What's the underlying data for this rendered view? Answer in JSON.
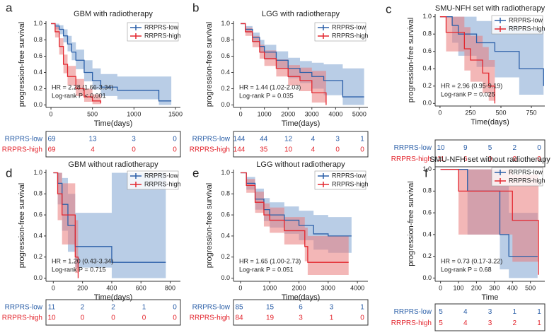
{
  "chart_data": [
    {
      "type": "step",
      "panel": "a",
      "title": "GBM with radiotherapy",
      "x_label": "Time(days)",
      "y_label": "progression-free survival",
      "xlim": [
        -60,
        1560
      ],
      "ylim": [
        -0.03,
        1.03
      ],
      "xticks": [
        0,
        500,
        1000,
        1500
      ],
      "yticks": [
        {
          "value": 0,
          "label": "0.0"
        },
        {
          "value": 0.2,
          "label": "0.2"
        },
        {
          "value": 0.4,
          "label": "0.4"
        },
        {
          "value": 0.6,
          "label": "0.6"
        },
        {
          "value": 0.8,
          "label": "0.8"
        },
        {
          "value": 1,
          "label": "1.0"
        }
      ],
      "legend": "upper right",
      "annotations": [
        "HR = 2.28 (1.66-3.34)",
        "Log-rank P < 0.001"
      ],
      "series": [
        {
          "name": "RRPRS-low",
          "color": "#2b5fa8",
          "x": [
            0,
            50,
            100,
            150,
            200,
            250,
            300,
            400,
            500,
            600,
            800,
            1300,
            1450
          ],
          "values": [
            1,
            0.97,
            0.93,
            0.85,
            0.75,
            0.65,
            0.55,
            0.4,
            0.3,
            0.22,
            0.18,
            0.05,
            0.05
          ],
          "lower": [
            1,
            0.93,
            0.87,
            0.77,
            0.66,
            0.55,
            0.44,
            0.29,
            0.19,
            0.11,
            0.07,
            0,
            0
          ],
          "upper": [
            1,
            1,
            0.98,
            0.93,
            0.85,
            0.77,
            0.68,
            0.55,
            0.45,
            0.38,
            0.35,
            0.35,
            0.35
          ],
          "at_risk": [
            69,
            13,
            3,
            0
          ]
        },
        {
          "name": "RRPRS-high",
          "color": "#e3262e",
          "x": [
            0,
            50,
            100,
            150,
            200,
            300,
            400,
            500,
            600
          ],
          "values": [
            1,
            0.9,
            0.72,
            0.5,
            0.35,
            0.2,
            0.1,
            0.05,
            0.02
          ],
          "lower": [
            1,
            0.83,
            0.62,
            0.39,
            0.24,
            0.11,
            0.04,
            0.01,
            0
          ],
          "upper": [
            1,
            0.96,
            0.82,
            0.62,
            0.48,
            0.32,
            0.2,
            0.13,
            0.1
          ],
          "at_risk": [
            69,
            4,
            0,
            0
          ]
        }
      ]
    },
    {
      "type": "step",
      "panel": "b",
      "title": "LGG with radiotherapy",
      "x_label": "Time(days)",
      "y_label": "progression-free survival",
      "xlim": [
        -300,
        5360
      ],
      "ylim": [
        -0.03,
        1.03
      ],
      "xticks": [
        0,
        1000,
        2000,
        3000,
        4000,
        5000
      ],
      "yticks": [
        {
          "value": 0,
          "label": "0.0"
        },
        {
          "value": 0.2,
          "label": "0.2"
        },
        {
          "value": 0.4,
          "label": "0.4"
        },
        {
          "value": 0.6,
          "label": "0.6"
        },
        {
          "value": 0.8,
          "label": "0.8"
        },
        {
          "value": 1,
          "label": "1.0"
        }
      ],
      "legend": "upper right",
      "annotations": [
        "HR = 1.44 (1.02-2.03)",
        "Log-rank P = 0.035"
      ],
      "series": [
        {
          "name": "RRPRS-low",
          "color": "#2b5fa8",
          "x": [
            0,
            200,
            500,
            800,
            1000,
            1500,
            2000,
            2500,
            3000,
            3500,
            4300,
            5200
          ],
          "values": [
            1,
            0.93,
            0.83,
            0.72,
            0.65,
            0.55,
            0.45,
            0.4,
            0.35,
            0.3,
            0.1,
            0.1
          ],
          "lower": [
            1,
            0.89,
            0.77,
            0.64,
            0.56,
            0.45,
            0.33,
            0.27,
            0.2,
            0.12,
            0,
            0
          ],
          "upper": [
            1,
            0.97,
            0.89,
            0.8,
            0.74,
            0.66,
            0.58,
            0.54,
            0.52,
            0.5,
            0.45,
            0.45
          ],
          "at_risk": [
            144,
            44,
            12,
            4,
            3,
            1
          ]
        },
        {
          "name": "RRPRS-high",
          "color": "#e3262e",
          "x": [
            0,
            200,
            500,
            800,
            1000,
            1500,
            2000,
            2500,
            3000,
            3600
          ],
          "values": [
            1,
            0.9,
            0.78,
            0.65,
            0.57,
            0.45,
            0.35,
            0.3,
            0.15,
            0
          ],
          "lower": [
            1,
            0.85,
            0.71,
            0.57,
            0.48,
            0.35,
            0.24,
            0.17,
            0.03,
            0
          ],
          "upper": [
            1,
            0.95,
            0.85,
            0.74,
            0.67,
            0.56,
            0.49,
            0.46,
            0.42,
            0.42
          ],
          "at_risk": [
            144,
            35,
            10,
            4,
            0,
            0
          ]
        }
      ]
    },
    {
      "type": "step",
      "panel": "c",
      "title": "SMU-NFH set with radiotherapy",
      "x_label": "Time(days)",
      "y_label": "progression-free survival",
      "xlim": [
        -40,
        860
      ],
      "ylim": [
        -0.03,
        1.03
      ],
      "xticks": [
        0,
        250,
        500,
        750
      ],
      "yticks": [
        {
          "value": 0,
          "label": "0.0"
        },
        {
          "value": 0.2,
          "label": "0.2"
        },
        {
          "value": 0.4,
          "label": "0.4"
        },
        {
          "value": 0.6,
          "label": "0.6"
        },
        {
          "value": 0.8,
          "label": "0.8"
        },
        {
          "value": 1,
          "label": "1.0"
        }
      ],
      "legend": "upper right",
      "annotations": [
        "HR = 2.96 (0.95-9.19)",
        "Log-rank P = 0.025"
      ],
      "series": [
        {
          "name": "RRPRS-low",
          "color": "#2b5fa8",
          "x": [
            0,
            50,
            100,
            150,
            200,
            300,
            450,
            650,
            850
          ],
          "values": [
            1,
            1,
            0.9,
            0.8,
            0.8,
            0.7,
            0.6,
            0.4,
            0.2
          ],
          "lower": [
            1,
            1,
            0.7,
            0.55,
            0.55,
            0.42,
            0.3,
            0.1,
            0
          ],
          "upper": [
            1,
            1,
            1,
            1,
            1,
            0.95,
            0.9,
            0.85,
            0.7
          ],
          "at_risk": [
            10,
            9,
            5,
            2,
            0
          ]
        },
        {
          "name": "RRPRS-high",
          "color": "#e3262e",
          "x": [
            0,
            50,
            150,
            200,
            250,
            350,
            400,
            450
          ],
          "values": [
            1,
            0.82,
            0.82,
            0.63,
            0.5,
            0.35,
            0.2,
            0
          ],
          "lower": [
            1,
            0.6,
            0.6,
            0.38,
            0.25,
            0.12,
            0.03,
            0
          ],
          "upper": [
            1,
            1,
            1,
            0.88,
            0.78,
            0.65,
            0.5,
            0.5
          ],
          "at_risk": [
            11,
            6,
            0,
            0,
            0
          ]
        }
      ]
    },
    {
      "type": "step",
      "panel": "d",
      "title": "GBM without radiotherapy",
      "x_label": "Time(days)",
      "y_label": "progression-free survival",
      "xlim": [
        -50,
        870
      ],
      "ylim": [
        -0.03,
        1.03
      ],
      "xticks": [
        0,
        200,
        400,
        600,
        800
      ],
      "yticks": [
        {
          "value": 0,
          "label": "0.0"
        },
        {
          "value": 0.2,
          "label": "0.2"
        },
        {
          "value": 0.4,
          "label": "0.4"
        },
        {
          "value": 0.6,
          "label": "0.6"
        },
        {
          "value": 0.8,
          "label": "0.8"
        },
        {
          "value": 1,
          "label": "1.0"
        }
      ],
      "legend": "upper right",
      "annotations": [
        "HR = 1.20 (0.43-3.34)",
        "Log-rank P = 0.715"
      ],
      "series": [
        {
          "name": "RRPRS-low",
          "color": "#2b5fa8",
          "x": [
            0,
            30,
            60,
            100,
            150,
            400,
            770
          ],
          "values": [
            1,
            0.9,
            0.7,
            0.5,
            0.3,
            0.15,
            0.15
          ],
          "lower": [
            1,
            0.7,
            0.45,
            0.25,
            0.1,
            0,
            0
          ],
          "upper": [
            1,
            1,
            0.95,
            0.8,
            0.62,
            1,
            1
          ],
          "at_risk": [
            11,
            2,
            2,
            1,
            0
          ]
        },
        {
          "name": "RRPRS-high",
          "color": "#e3262e",
          "x": [
            0,
            30,
            60,
            100,
            150,
            170
          ],
          "values": [
            1,
            0.8,
            0.6,
            0.6,
            0.2,
            0
          ],
          "lower": [
            1,
            0.55,
            0.32,
            0.32,
            0.05,
            0
          ],
          "upper": [
            1,
            1,
            0.9,
            0.9,
            0.55,
            0.55
          ],
          "at_risk": [
            10,
            0,
            0,
            0,
            0
          ]
        }
      ]
    },
    {
      "type": "step",
      "panel": "e",
      "title": "LGG without radiotherapy",
      "x_label": "Time(days)",
      "y_label": "progression-free survival",
      "xlim": [
        -240,
        4360
      ],
      "ylim": [
        -0.03,
        1.03
      ],
      "xticks": [
        0,
        1000,
        2000,
        3000,
        4000
      ],
      "yticks": [
        {
          "value": 0,
          "label": "0.0"
        },
        {
          "value": 0.2,
          "label": "0.2"
        },
        {
          "value": 0.4,
          "label": "0.4"
        },
        {
          "value": 0.6,
          "label": "0.6"
        },
        {
          "value": 0.8,
          "label": "0.8"
        },
        {
          "value": 1,
          "label": "1.0"
        }
      ],
      "legend": "upper right",
      "annotations": [
        "HR = 1.65 (1.00-2.73)",
        "Log-rank P = 0.051"
      ],
      "series": [
        {
          "name": "RRPRS-low",
          "color": "#2b5fa8",
          "x": [
            0,
            200,
            500,
            800,
            1000,
            1500,
            2000,
            2500,
            3000,
            3800
          ],
          "values": [
            1,
            0.9,
            0.75,
            0.65,
            0.6,
            0.55,
            0.5,
            0.42,
            0.4,
            0.4
          ],
          "lower": [
            1,
            0.84,
            0.65,
            0.54,
            0.48,
            0.42,
            0.36,
            0.27,
            0.24,
            0.24
          ],
          "upper": [
            1,
            0.96,
            0.85,
            0.76,
            0.72,
            0.68,
            0.64,
            0.6,
            0.58,
            0.58
          ],
          "at_risk": [
            85,
            15,
            6,
            3,
            1
          ]
        },
        {
          "name": "RRPRS-high",
          "color": "#e3262e",
          "x": [
            0,
            200,
            500,
            800,
            1000,
            1500,
            2200,
            2300,
            3700
          ],
          "values": [
            1,
            0.88,
            0.72,
            0.6,
            0.55,
            0.45,
            0.3,
            0.15,
            0.15
          ],
          "lower": [
            1,
            0.81,
            0.62,
            0.49,
            0.43,
            0.32,
            0.16,
            0.03,
            0.03
          ],
          "upper": [
            1,
            0.94,
            0.82,
            0.71,
            0.67,
            0.58,
            0.48,
            0.4,
            0.4
          ],
          "at_risk": [
            84,
            19,
            3,
            1,
            0
          ]
        }
      ]
    },
    {
      "type": "step",
      "panel": "f",
      "title": "SMU-NFH set without radiotherapy",
      "x_label": "Time",
      "y_label": "progression-free survival",
      "xlim": [
        -30,
        580
      ],
      "ylim": [
        -0.03,
        1.03
      ],
      "xticks": [
        0,
        100,
        200,
        300,
        400,
        500
      ],
      "yticks": [
        {
          "value": 0,
          "label": "0.0"
        },
        {
          "value": 0.2,
          "label": "0.2"
        },
        {
          "value": 0.4,
          "label": "0.4"
        },
        {
          "value": 0.6,
          "label": "0.6"
        },
        {
          "value": 0.8,
          "label": "0.8"
        },
        {
          "value": 1,
          "label": "1.0"
        }
      ],
      "legend": "upper right",
      "annotations": [
        "HR = 0.73 (0.17-3.22)",
        "Log-rank P = 0.68"
      ],
      "series": [
        {
          "name": "RRPRS-low",
          "color": "#2b5fa8",
          "x": [
            0,
            150,
            300,
            330,
            380,
            540
          ],
          "values": [
            1,
            0.8,
            0.8,
            0.4,
            0.2,
            0.2
          ],
          "lower": [
            1,
            0.4,
            0.4,
            0.08,
            0,
            0
          ],
          "upper": [
            1,
            1,
            1,
            0.85,
            0.6,
            0.6
          ],
          "at_risk": [
            5,
            4,
            3,
            1,
            1
          ]
        },
        {
          "name": "RRPRS-high",
          "color": "#e3262e",
          "x": [
            0,
            100,
            330,
            400,
            540,
            545
          ],
          "values": [
            1,
            0.8,
            0.8,
            0.53,
            0.53,
            0.03
          ],
          "lower": [
            1,
            0.4,
            0.4,
            0.15,
            0.15,
            0
          ],
          "upper": [
            1,
            1,
            1,
            0.95,
            0.95,
            0.95
          ],
          "at_risk": [
            5,
            4,
            3,
            2,
            1
          ]
        }
      ]
    }
  ]
}
